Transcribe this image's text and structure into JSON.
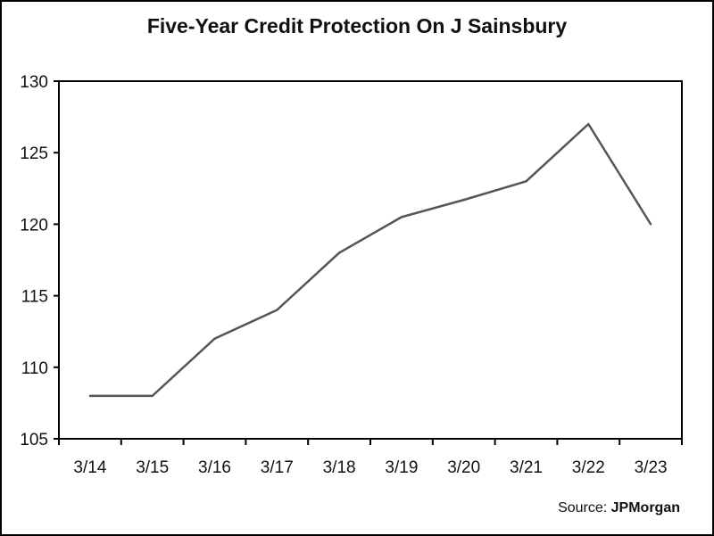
{
  "chart_data": {
    "type": "line",
    "title": "Five-Year Credit Protection On J Sainsbury",
    "xlabel": "",
    "ylabel": "",
    "categories": [
      "3/14",
      "3/15",
      "3/16",
      "3/17",
      "3/18",
      "3/19",
      "3/20",
      "3/21",
      "3/22",
      "3/23"
    ],
    "series": [
      {
        "values": [
          108,
          108,
          112,
          114,
          118,
          120.5,
          121.7,
          123,
          127,
          120
        ]
      }
    ],
    "ylim": [
      105,
      130
    ],
    "yticks": [
      105,
      110,
      115,
      120,
      125,
      130
    ],
    "grid": false,
    "legend": "none",
    "line_color": "#555555"
  },
  "source": {
    "label": "Source:",
    "name": "JPMorgan"
  }
}
